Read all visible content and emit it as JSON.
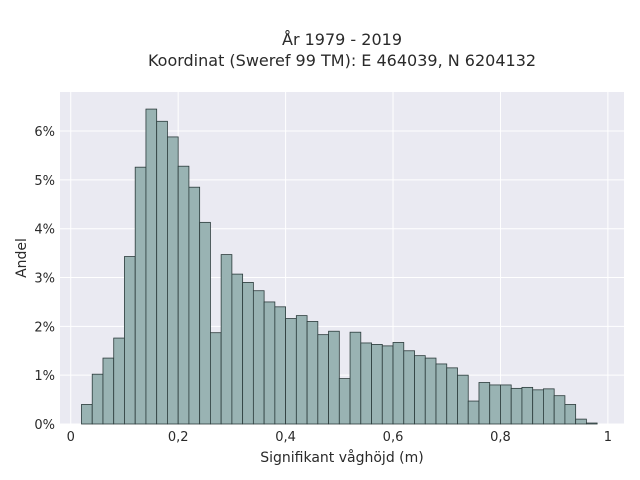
{
  "chart_data": {
    "type": "bar",
    "title": "År 1979 - 2019",
    "subtitle": "Koordinat (Sweref 99 TM): E 464039, N 6204132",
    "xlabel": "Signifikant våghöjd (m)",
    "ylabel": "Andel",
    "xlim": [
      -0.02,
      1.03
    ],
    "ylim": [
      0,
      6.8
    ],
    "xticks": [
      0,
      0.2,
      0.4,
      0.6,
      0.8,
      1
    ],
    "xtick_labels": [
      "0",
      "0,2",
      "0,4",
      "0,6",
      "0,8",
      "1"
    ],
    "yticks": [
      0,
      1,
      2,
      3,
      4,
      5,
      6
    ],
    "ytick_labels": [
      "0%",
      "1%",
      "2%",
      "3%",
      "4%",
      "5%",
      "6%"
    ],
    "grid": true,
    "bin_width": 0.02,
    "bin_starts": [
      0.02,
      0.04,
      0.06,
      0.08,
      0.1,
      0.12,
      0.14,
      0.16,
      0.18,
      0.2,
      0.22,
      0.24,
      0.26,
      0.28,
      0.3,
      0.32,
      0.34,
      0.36,
      0.38,
      0.4,
      0.42,
      0.44,
      0.46,
      0.48,
      0.5,
      0.52,
      0.54,
      0.56,
      0.58,
      0.6,
      0.62,
      0.64,
      0.66,
      0.68,
      0.7,
      0.72,
      0.74,
      0.76,
      0.78,
      0.8,
      0.82,
      0.84,
      0.86,
      0.88,
      0.9,
      0.92,
      0.94,
      0.96
    ],
    "values": [
      0.4,
      1.02,
      1.35,
      1.76,
      3.43,
      5.26,
      6.45,
      6.2,
      5.88,
      5.28,
      4.85,
      4.13,
      1.87,
      3.47,
      3.07,
      2.9,
      2.73,
      2.5,
      2.4,
      2.16,
      2.22,
      2.1,
      1.83,
      1.9,
      0.93,
      1.88,
      1.66,
      1.63,
      1.6,
      1.67,
      1.5,
      1.4,
      1.35,
      1.23,
      1.15,
      1.0,
      0.47,
      0.85,
      0.8,
      0.8,
      0.73,
      0.75,
      0.7,
      0.72,
      0.58,
      0.4,
      0.1,
      0.02
    ],
    "colors": {
      "bar_fill": "#99b3b3",
      "bar_stroke": "#2b3b3b",
      "plot_bg": "#eaeaf2",
      "grid": "#ffffff"
    }
  }
}
